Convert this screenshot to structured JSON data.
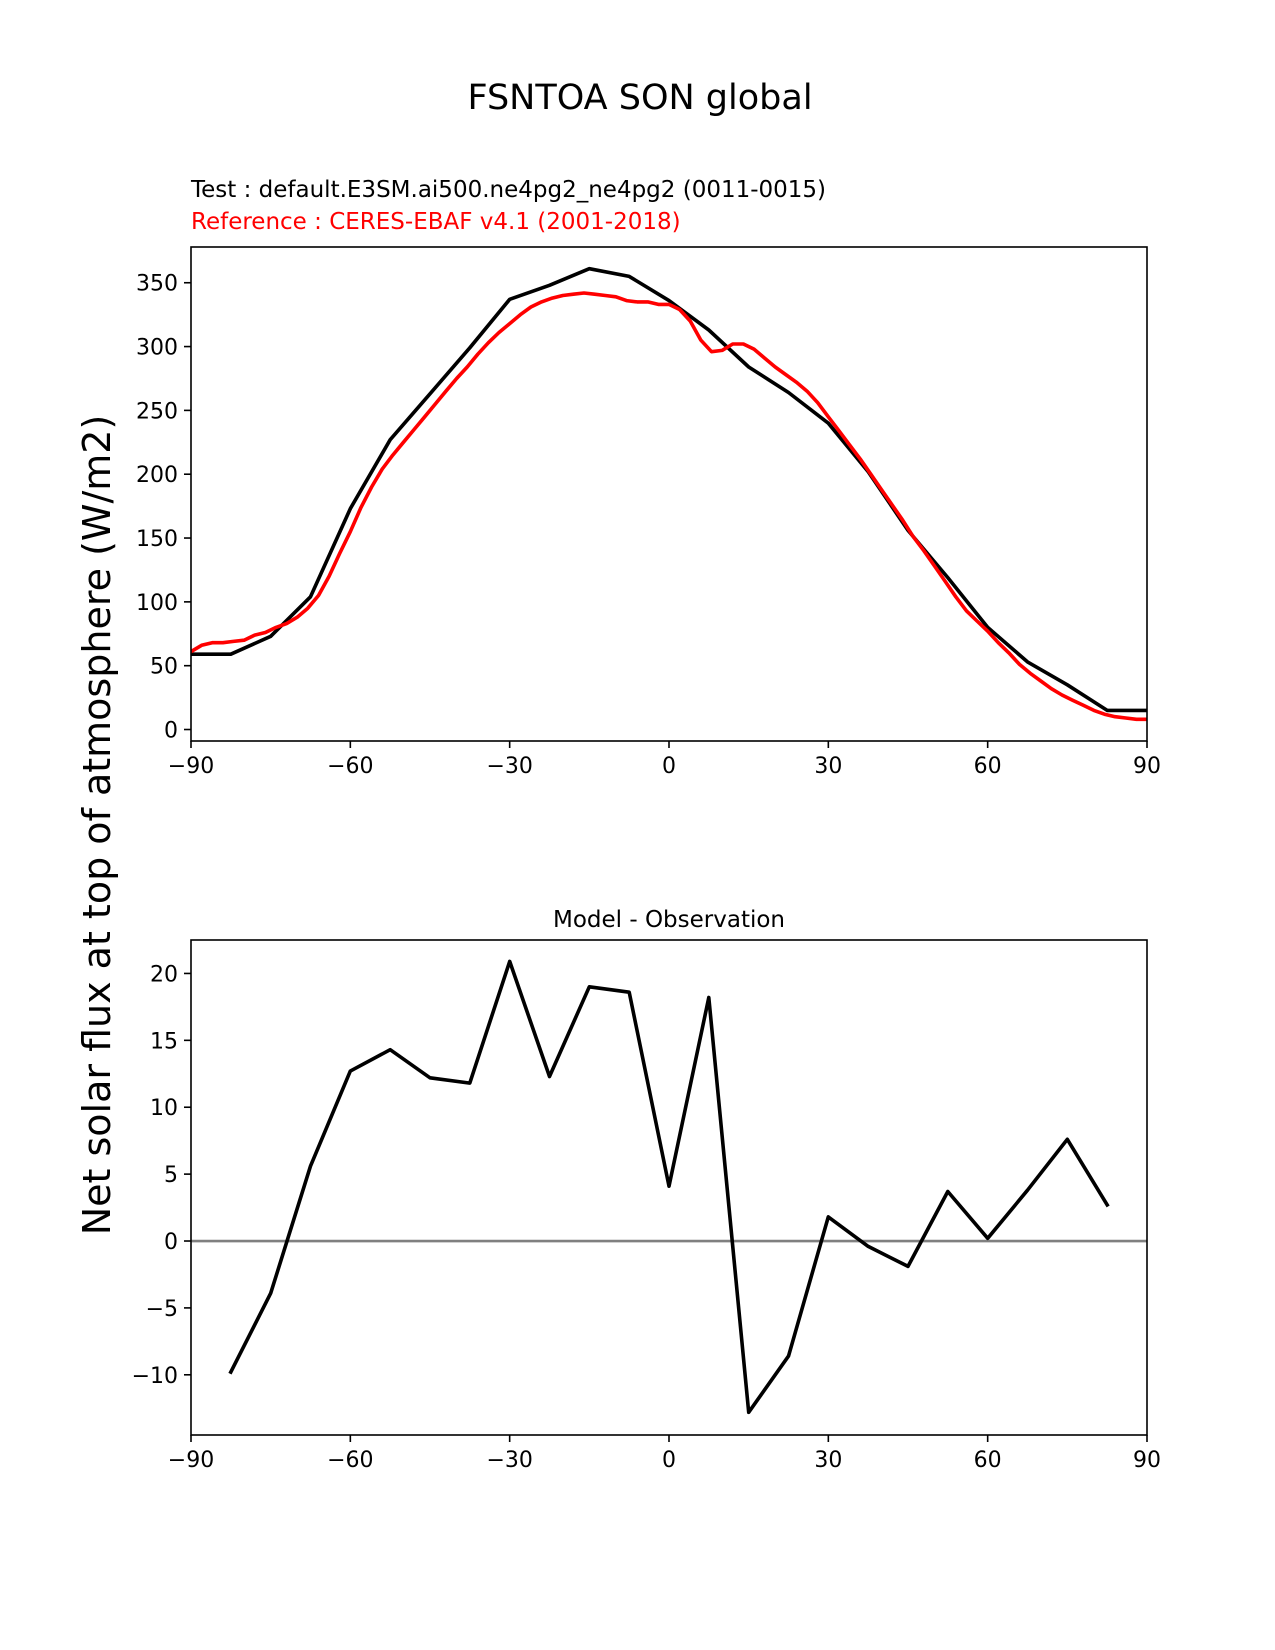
{
  "figure": {
    "title": "FSNTOA SON global",
    "ylabel": "Net solar flux at top of atmosphere (W/m2)"
  },
  "chart_data": [
    {
      "type": "line",
      "title": "",
      "annotations": [
        {
          "text": "Test : default.E3SM.ai500.ne4pg2_ne4pg2 (0011-0015)",
          "color": "#000000"
        },
        {
          "text": "Reference : CERES-EBAF v4.1 (2001-2018)",
          "color": "#ff0000"
        }
      ],
      "xlabel": "",
      "ylabel": "",
      "xlim": [
        -90,
        90
      ],
      "ylim": [
        -9,
        378
      ],
      "xticks": [
        -90,
        -60,
        -30,
        0,
        30,
        60,
        90
      ],
      "xtick_labels": [
        "−90",
        "−60",
        "−30",
        "0",
        "30",
        "60",
        "90"
      ],
      "yticks": [
        0,
        50,
        100,
        150,
        200,
        250,
        300,
        350
      ],
      "ytick_labels": [
        "0",
        "50",
        "100",
        "150",
        "200",
        "250",
        "300",
        "350"
      ],
      "grid": false,
      "series": [
        {
          "color": "#000000",
          "x": [
            -90,
            -82.5,
            -75,
            -67.5,
            -60,
            -52.5,
            -45,
            -37.5,
            -30,
            -22.5,
            -15,
            -7.5,
            0,
            7.5,
            15,
            22.5,
            30,
            37.5,
            45,
            52.5,
            60,
            67.5,
            75,
            82.5,
            90
          ],
          "y": [
            59,
            59,
            73,
            104,
            173,
            227,
            263,
            299,
            337,
            348,
            361,
            355,
            336,
            313,
            284,
            264,
            240,
            202,
            156,
            119,
            80,
            53,
            35,
            15,
            15
          ]
        },
        {
          "color": "#ff0000",
          "x": [
            -90,
            -88,
            -86,
            -84,
            -82,
            -80,
            -78,
            -76,
            -74,
            -72,
            -70,
            -68,
            -66,
            -64,
            -62,
            -60,
            -58,
            -56,
            -54,
            -52,
            -50,
            -48,
            -46,
            -44,
            -42,
            -40,
            -38,
            -36,
            -34,
            -32,
            -30,
            -28,
            -26,
            -24,
            -22,
            -20,
            -18,
            -16,
            -14,
            -12,
            -10,
            -8,
            -6,
            -4,
            -2,
            0,
            2,
            4,
            6,
            8,
            10,
            12,
            14,
            16,
            18,
            20,
            22,
            24,
            26,
            28,
            30,
            32,
            34,
            36,
            38,
            40,
            42,
            44,
            46,
            48,
            50,
            52,
            54,
            56,
            58,
            60,
            62,
            64,
            66,
            68,
            70,
            72,
            74,
            76,
            78,
            80,
            82,
            84,
            86,
            88,
            90
          ],
          "y": [
            61,
            66,
            68,
            68,
            69,
            70,
            74,
            76,
            80,
            83,
            88,
            95,
            105,
            120,
            138,
            155,
            174,
            190,
            204,
            215,
            225,
            235,
            245,
            255,
            265,
            275,
            284,
            294,
            303,
            311,
            318,
            325,
            331,
            335,
            338,
            340,
            341,
            342,
            341,
            340,
            339,
            336,
            335,
            335,
            333,
            333,
            329,
            320,
            305,
            296,
            297,
            302,
            302,
            298,
            291,
            284,
            278,
            272,
            265,
            256,
            245,
            234,
            223,
            212,
            200,
            188,
            176,
            164,
            151,
            140,
            128,
            116,
            104,
            93,
            85,
            77,
            68,
            60,
            51,
            44,
            38,
            32,
            27,
            23,
            19,
            15,
            12,
            10,
            9,
            8,
            8
          ]
        }
      ]
    },
    {
      "type": "line",
      "title": "Model - Observation",
      "xlabel": "",
      "ylabel": "",
      "xlim": [
        -90,
        90
      ],
      "ylim": [
        -14.5,
        22.5
      ],
      "xticks": [
        -90,
        -60,
        -30,
        0,
        30,
        60,
        90
      ],
      "xtick_labels": [
        "−90",
        "−60",
        "−30",
        "0",
        "30",
        "60",
        "90"
      ],
      "yticks": [
        -10,
        -5,
        0,
        5,
        10,
        15,
        20
      ],
      "ytick_labels": [
        "−10",
        "−5",
        "0",
        "5",
        "10",
        "15",
        "20"
      ],
      "grid": false,
      "reference_line": {
        "y": 0,
        "color": "#808080"
      },
      "series": [
        {
          "color": "#000000",
          "x": [
            -82.5,
            -75,
            -67.5,
            -60,
            -52.5,
            -45,
            -37.5,
            -30,
            -22.5,
            -15,
            -7.5,
            0,
            7.5,
            15,
            22.5,
            30,
            37.5,
            45,
            52.5,
            60,
            67.5,
            75,
            82.5
          ],
          "y": [
            -9.8,
            -3.9,
            5.6,
            12.7,
            14.3,
            12.2,
            11.8,
            20.9,
            12.3,
            19.0,
            18.6,
            4.1,
            18.2,
            -12.8,
            -8.6,
            1.8,
            -0.4,
            -1.9,
            3.7,
            0.2,
            3.8,
            7.6,
            2.7
          ]
        }
      ]
    }
  ]
}
